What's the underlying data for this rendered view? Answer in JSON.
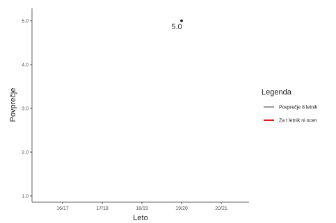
{
  "chart_data": {
    "type": "line",
    "categories": [
      "16/17",
      "17/18",
      "18/19",
      "19/20",
      "20/21"
    ],
    "series": [
      {
        "name": "Povprečje 8 letnik",
        "color": "#333333",
        "values": [
          null,
          null,
          null,
          5.0,
          null
        ],
        "labels": [
          null,
          null,
          null,
          "5.0",
          null
        ]
      },
      {
        "name": "Za t letnik ni ocen",
        "color": "#e41a1c",
        "values": [
          null,
          null,
          null,
          null,
          null
        ]
      }
    ],
    "xlabel": "Leto",
    "ylabel": "Povprečje",
    "ylim": [
      1.0,
      5.0
    ],
    "yticks": [
      "1.0",
      "2.0",
      "3.0",
      "4.0",
      "5.0"
    ],
    "legend_title": "Legenda",
    "legend_position": "right",
    "grid": false
  }
}
